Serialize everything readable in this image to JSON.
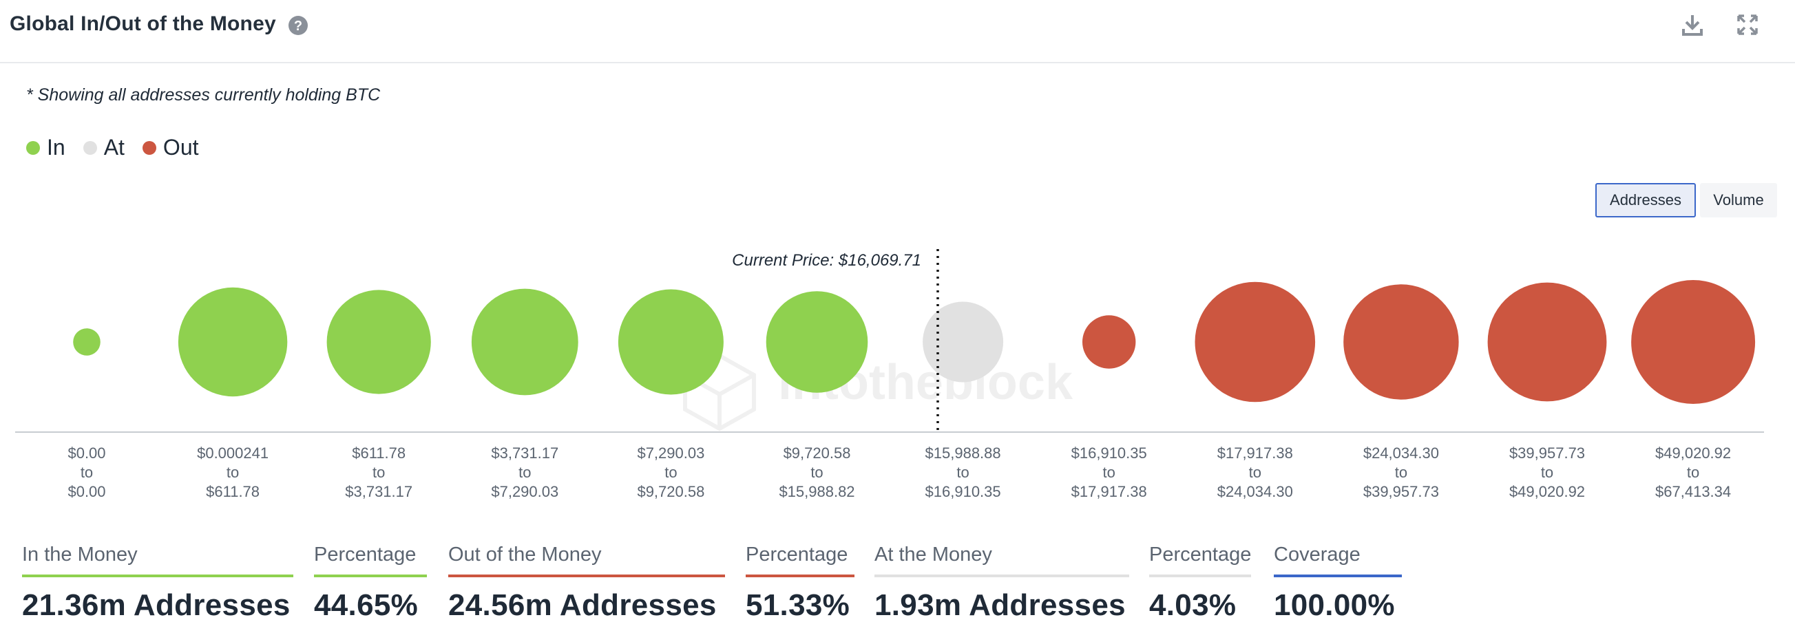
{
  "header": {
    "title": "Global In/Out of the Money",
    "help_icon": "question-circle-icon",
    "download_icon": "download-icon",
    "expand_icon": "expand-icon"
  },
  "note": "* Showing all addresses currently holding BTC",
  "legend": [
    {
      "label": "In",
      "color": "#8fd14f"
    },
    {
      "label": "At",
      "color": "#e1e1e1"
    },
    {
      "label": "Out",
      "color": "#cc5640"
    }
  ],
  "toggle": {
    "addresses_label": "Addresses",
    "volume_label": "Volume",
    "selected": "Addresses"
  },
  "chart_data": {
    "type": "bubble",
    "current_price_label": "Current Price: $16,069.71",
    "current_price": 16069.71,
    "colors": {
      "in": "#8fd14f",
      "at": "#e1e1e1",
      "out": "#cc5640"
    },
    "buckets": [
      {
        "from": "$0.00",
        "to": "$0.00",
        "status": "in",
        "relative_size": 0.22
      },
      {
        "from": "$0.000241",
        "to": "$611.78",
        "status": "in",
        "relative_size": 0.88
      },
      {
        "from": "$611.78",
        "to": "$3,731.17",
        "status": "in",
        "relative_size": 0.84
      },
      {
        "from": "$3,731.17",
        "to": "$7,290.03",
        "status": "in",
        "relative_size": 0.86
      },
      {
        "from": "$7,290.03",
        "to": "$9,720.58",
        "status": "in",
        "relative_size": 0.85
      },
      {
        "from": "$9,720.58",
        "to": "$15,988.82",
        "status": "in",
        "relative_size": 0.82
      },
      {
        "from": "$15,988.88",
        "to": "$16,910.35",
        "status": "at",
        "relative_size": 0.65
      },
      {
        "from": "$16,910.35",
        "to": "$17,917.38",
        "status": "out",
        "relative_size": 0.43
      },
      {
        "from": "$17,917.38",
        "to": "$24,034.30",
        "status": "out",
        "relative_size": 0.97
      },
      {
        "from": "$24,034.30",
        "to": "$39,957.73",
        "status": "out",
        "relative_size": 0.93
      },
      {
        "from": "$39,957.73",
        "to": "$49,020.92",
        "status": "out",
        "relative_size": 0.96
      },
      {
        "from": "$49,020.92",
        "to": "$67,413.34",
        "status": "out",
        "relative_size": 1.0
      }
    ],
    "range_connector": "to",
    "watermark": "intotheblock"
  },
  "stats": [
    {
      "label": "In the Money",
      "value": "21.36m Addresses",
      "color": "#8fd14f"
    },
    {
      "label": "Percentage",
      "value": "44.65%",
      "color": "#8fd14f"
    },
    {
      "label": "Out of the Money",
      "value": "24.56m Addresses",
      "color": "#cc5640"
    },
    {
      "label": "Percentage",
      "value": "51.33%",
      "color": "#cc5640"
    },
    {
      "label": "At the Money",
      "value": "1.93m Addresses",
      "color": "#e1e1e1"
    },
    {
      "label": "Percentage",
      "value": "4.03%",
      "color": "#e1e1e1"
    },
    {
      "label": "Coverage",
      "value": "100.00%",
      "color": "#3b67c9"
    }
  ]
}
